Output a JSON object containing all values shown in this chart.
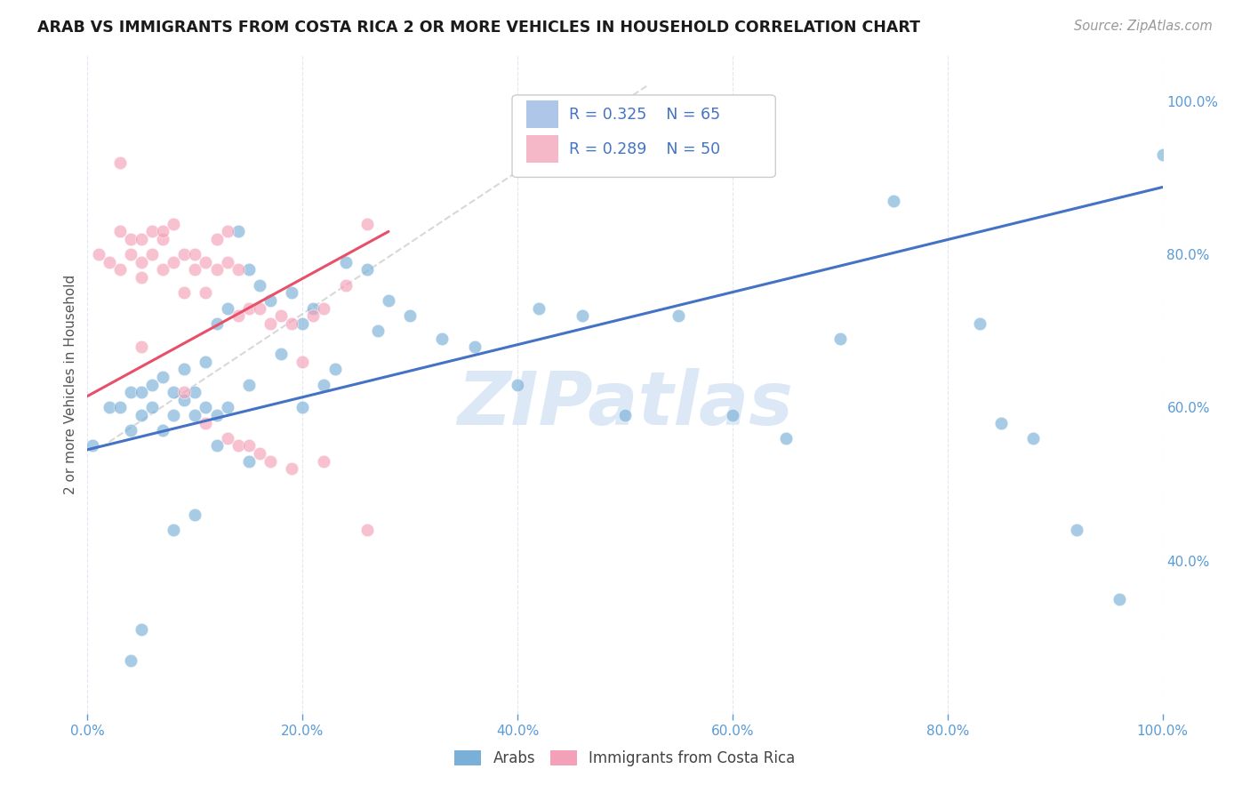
{
  "title": "ARAB VS IMMIGRANTS FROM COSTA RICA 2 OR MORE VEHICLES IN HOUSEHOLD CORRELATION CHART",
  "source": "Source: ZipAtlas.com",
  "ylabel": "2 or more Vehicles in Household",
  "watermark": "ZIPatlas",
  "legend": {
    "arab": {
      "R": 0.325,
      "N": 65,
      "color": "#aec6e8"
    },
    "costa_rica": {
      "R": 0.289,
      "N": 50,
      "color": "#f4b8c8"
    }
  },
  "arab_scatter": {
    "color": "#7ab0d8",
    "points_x": [
      0.42,
      0.48,
      0.005,
      0.02,
      0.03,
      0.04,
      0.04,
      0.05,
      0.05,
      0.06,
      0.06,
      0.07,
      0.07,
      0.08,
      0.08,
      0.09,
      0.09,
      0.1,
      0.1,
      0.11,
      0.11,
      0.12,
      0.12,
      0.13,
      0.13,
      0.14,
      0.15,
      0.15,
      0.16,
      0.17,
      0.18,
      0.19,
      0.2,
      0.21,
      0.22,
      0.23,
      0.24,
      0.26,
      0.27,
      0.28,
      0.3,
      0.33,
      0.36,
      0.4,
      0.42,
      0.46,
      0.5,
      0.55,
      0.6,
      0.65,
      0.7,
      0.75,
      0.83,
      0.85,
      0.88,
      0.92,
      0.96,
      1.0,
      0.04,
      0.05,
      0.08,
      0.1,
      0.12,
      0.15,
      0.2
    ],
    "points_y": [
      1.0,
      0.97,
      0.55,
      0.6,
      0.6,
      0.62,
      0.57,
      0.62,
      0.59,
      0.6,
      0.63,
      0.57,
      0.64,
      0.59,
      0.62,
      0.61,
      0.65,
      0.59,
      0.62,
      0.6,
      0.66,
      0.59,
      0.71,
      0.6,
      0.73,
      0.83,
      0.63,
      0.78,
      0.76,
      0.74,
      0.67,
      0.75,
      0.71,
      0.73,
      0.63,
      0.65,
      0.79,
      0.78,
      0.7,
      0.74,
      0.72,
      0.69,
      0.68,
      0.63,
      0.73,
      0.72,
      0.59,
      0.72,
      0.59,
      0.56,
      0.69,
      0.87,
      0.71,
      0.58,
      0.56,
      0.44,
      0.35,
      0.93,
      0.27,
      0.31,
      0.44,
      0.46,
      0.55,
      0.53,
      0.6
    ]
  },
  "costa_rica_scatter": {
    "color": "#f4a0b8",
    "points_x": [
      0.01,
      0.02,
      0.03,
      0.03,
      0.04,
      0.04,
      0.05,
      0.05,
      0.05,
      0.06,
      0.06,
      0.07,
      0.07,
      0.08,
      0.08,
      0.09,
      0.09,
      0.1,
      0.1,
      0.11,
      0.11,
      0.12,
      0.12,
      0.13,
      0.13,
      0.14,
      0.14,
      0.15,
      0.16,
      0.17,
      0.18,
      0.19,
      0.2,
      0.21,
      0.22,
      0.24,
      0.26,
      0.03,
      0.05,
      0.07,
      0.09,
      0.11,
      0.13,
      0.14,
      0.15,
      0.16,
      0.17,
      0.19,
      0.22,
      0.26
    ],
    "points_y": [
      0.8,
      0.79,
      0.83,
      0.78,
      0.8,
      0.82,
      0.82,
      0.79,
      0.77,
      0.8,
      0.83,
      0.78,
      0.82,
      0.79,
      0.84,
      0.8,
      0.75,
      0.8,
      0.78,
      0.75,
      0.79,
      0.78,
      0.82,
      0.79,
      0.83,
      0.78,
      0.72,
      0.73,
      0.73,
      0.71,
      0.72,
      0.71,
      0.66,
      0.72,
      0.73,
      0.76,
      0.84,
      0.92,
      0.68,
      0.83,
      0.62,
      0.58,
      0.56,
      0.55,
      0.55,
      0.54,
      0.53,
      0.52,
      0.53,
      0.44
    ]
  },
  "arab_line": {
    "x": [
      0.0,
      1.0
    ],
    "y": [
      0.545,
      0.888
    ],
    "color": "#4472c4",
    "linewidth": 2.2
  },
  "costa_rica_line": {
    "x": [
      0.0,
      0.28
    ],
    "y": [
      0.615,
      0.83
    ],
    "color": "#e8506a",
    "linewidth": 2.2
  },
  "diagonal_line": {
    "x": [
      0.02,
      0.52
    ],
    "y": [
      0.555,
      1.02
    ],
    "color": "#c8c8c8",
    "linestyle": "dashed",
    "linewidth": 1.5
  },
  "xlim": [
    0.0,
    1.0
  ],
  "ylim": [
    0.2,
    1.06
  ],
  "yticks": [
    0.4,
    0.6,
    0.8,
    1.0
  ],
  "ytick_labels": [
    "40.0%",
    "60.0%",
    "80.0%",
    "100.0%"
  ],
  "xticks": [
    0.0,
    0.2,
    0.4,
    0.6,
    0.8,
    1.0
  ],
  "xtick_labels": [
    "0.0%",
    "20.0%",
    "40.0%",
    "60.0%",
    "80.0%",
    "100.0%"
  ],
  "title_fontsize": 12.5,
  "source_fontsize": 10.5,
  "tick_color": "#5b9bd5",
  "background_color": "#ffffff",
  "grid_color": "#dce8f5",
  "watermark_color": "#dce8f5",
  "watermark_fontsize": 60,
  "scatter_size": 110
}
